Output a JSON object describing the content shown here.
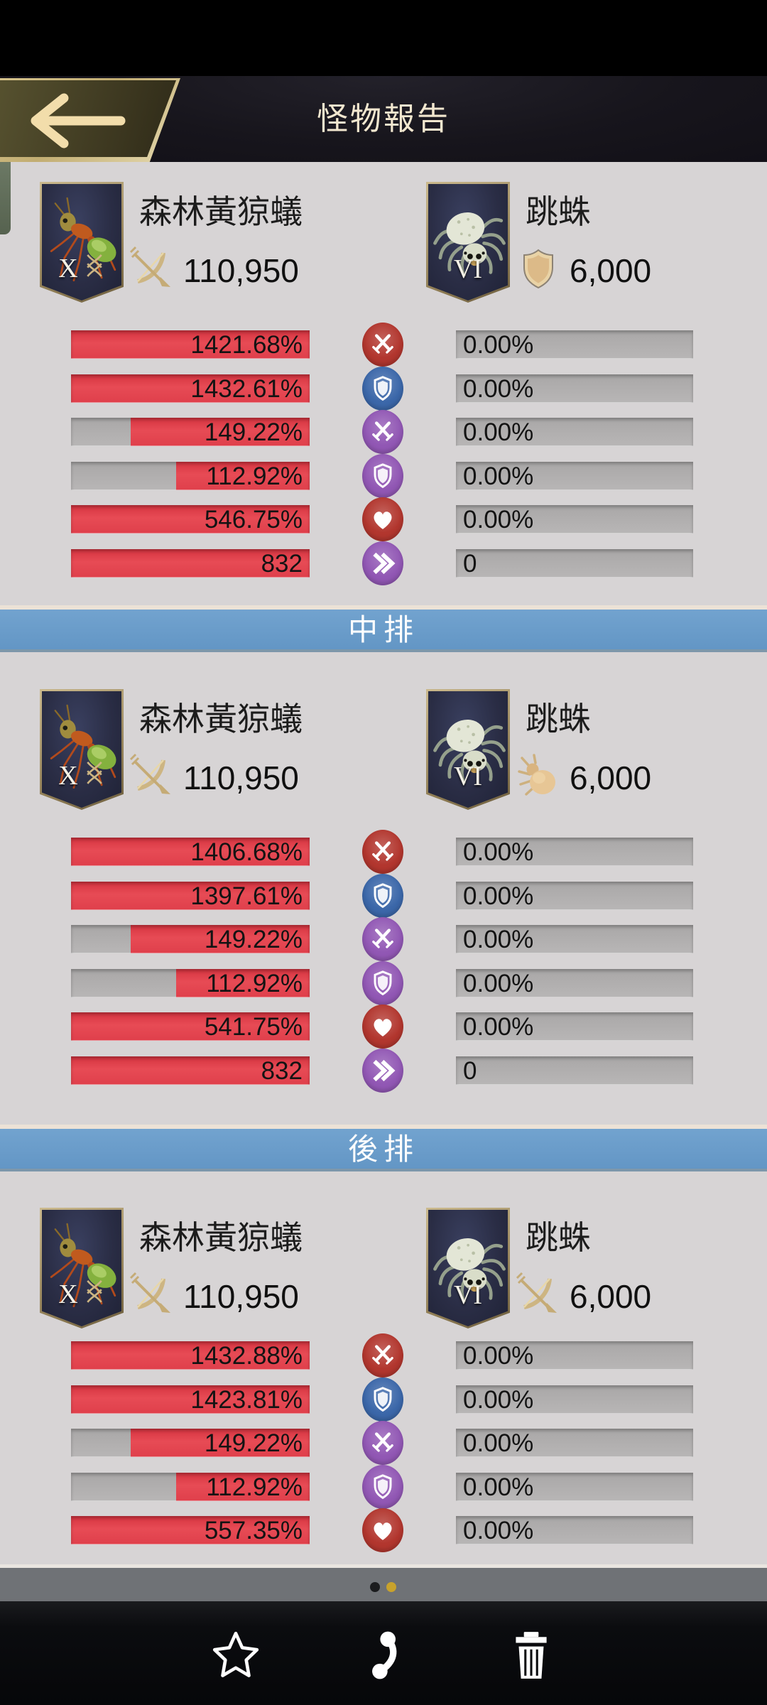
{
  "header": {
    "title": "怪物報告"
  },
  "colors": {
    "bar_red": "#e2414d",
    "bar_gray": "#b3b1b1",
    "circle_red": "#b2362e",
    "circle_blue": "#3b67a9",
    "circle_purple": "#9157b4",
    "banner_blue": "#6a9dc9",
    "content_bg": "#d7d4d5",
    "pager_gold": "#c8a22c"
  },
  "sections": [
    {
      "banner_label": null,
      "attacker": {
        "name": "森林黃猄蟻",
        "tier": "X",
        "has_dna": true,
        "creature": "ant",
        "stat_icon": "bow-icon",
        "power": "110,950"
      },
      "defender": {
        "name": "跳蛛",
        "tier": "VI",
        "has_dna": false,
        "creature": "spider",
        "stat_icon": "shield-icon",
        "power": "6,000"
      },
      "rows": [
        {
          "stat": "attack-icon",
          "circle": "#b2362e",
          "glyph": "swords",
          "left_value": "1421.68%",
          "left_fill": 100,
          "right_value": "0.00%",
          "right_fill": 0
        },
        {
          "stat": "defense-icon",
          "circle": "#3b67a9",
          "glyph": "shield",
          "left_value": "1432.61%",
          "left_fill": 100,
          "right_value": "0.00%",
          "right_fill": 0
        },
        {
          "stat": "special-attack-icon",
          "circle": "#9157b4",
          "glyph": "swords",
          "left_value": "149.22%",
          "left_fill": 75,
          "right_value": "0.00%",
          "right_fill": 0
        },
        {
          "stat": "special-defense-icon",
          "circle": "#9157b4",
          "glyph": "shield",
          "left_value": "112.92%",
          "left_fill": 56,
          "right_value": "0.00%",
          "right_fill": 0
        },
        {
          "stat": "health-icon",
          "circle": "#b2362e",
          "glyph": "heart",
          "left_value": "546.75%",
          "left_fill": 100,
          "right_value": "0.00%",
          "right_fill": 0
        },
        {
          "stat": "speed-icon",
          "circle": "#9157b4",
          "glyph": "chevrons",
          "left_value": "832",
          "left_fill": 100,
          "right_value": "0",
          "right_fill": 0
        }
      ]
    },
    {
      "banner_label": "中排",
      "attacker": {
        "name": "森林黃猄蟻",
        "tier": "X",
        "has_dna": true,
        "creature": "ant",
        "stat_icon": "bow-icon",
        "power": "110,950"
      },
      "defender": {
        "name": "跳蛛",
        "tier": "VI",
        "has_dna": false,
        "creature": "spider",
        "stat_icon": "insect-icon",
        "power": "6,000"
      },
      "rows": [
        {
          "stat": "attack-icon",
          "circle": "#b2362e",
          "glyph": "swords",
          "left_value": "1406.68%",
          "left_fill": 100,
          "right_value": "0.00%",
          "right_fill": 0
        },
        {
          "stat": "defense-icon",
          "circle": "#3b67a9",
          "glyph": "shield",
          "left_value": "1397.61%",
          "left_fill": 100,
          "right_value": "0.00%",
          "right_fill": 0
        },
        {
          "stat": "special-attack-icon",
          "circle": "#9157b4",
          "glyph": "swords",
          "left_value": "149.22%",
          "left_fill": 75,
          "right_value": "0.00%",
          "right_fill": 0
        },
        {
          "stat": "special-defense-icon",
          "circle": "#9157b4",
          "glyph": "shield",
          "left_value": "112.92%",
          "left_fill": 56,
          "right_value": "0.00%",
          "right_fill": 0
        },
        {
          "stat": "health-icon",
          "circle": "#b2362e",
          "glyph": "heart",
          "left_value": "541.75%",
          "left_fill": 100,
          "right_value": "0.00%",
          "right_fill": 0
        },
        {
          "stat": "speed-icon",
          "circle": "#9157b4",
          "glyph": "chevrons",
          "left_value": "832",
          "left_fill": 100,
          "right_value": "0",
          "right_fill": 0
        }
      ]
    },
    {
      "banner_label": "後排",
      "attacker": {
        "name": "森林黃猄蟻",
        "tier": "X",
        "has_dna": true,
        "creature": "ant",
        "stat_icon": "bow-icon",
        "power": "110,950"
      },
      "defender": {
        "name": "跳蛛",
        "tier": "VI",
        "has_dna": false,
        "creature": "spider",
        "stat_icon": "bow-icon",
        "power": "6,000"
      },
      "rows": [
        {
          "stat": "attack-icon",
          "circle": "#b2362e",
          "glyph": "swords",
          "left_value": "1432.88%",
          "left_fill": 100,
          "right_value": "0.00%",
          "right_fill": 0
        },
        {
          "stat": "defense-icon",
          "circle": "#3b67a9",
          "glyph": "shield",
          "left_value": "1423.81%",
          "left_fill": 100,
          "right_value": "0.00%",
          "right_fill": 0
        },
        {
          "stat": "special-attack-icon",
          "circle": "#9157b4",
          "glyph": "swords",
          "left_value": "149.22%",
          "left_fill": 75,
          "right_value": "0.00%",
          "right_fill": 0
        },
        {
          "stat": "special-defense-icon",
          "circle": "#9157b4",
          "glyph": "shield",
          "left_value": "112.92%",
          "left_fill": 56,
          "right_value": "0.00%",
          "right_fill": 0
        },
        {
          "stat": "health-icon",
          "circle": "#b2362e",
          "glyph": "heart",
          "left_value": "557.35%",
          "left_fill": 100,
          "right_value": "0.00%",
          "right_fill": 0
        }
      ]
    }
  ],
  "pager": {
    "dots": [
      {
        "active": false
      },
      {
        "active": true
      }
    ]
  },
  "toolbar": {
    "icons": [
      "star-icon",
      "share-icon",
      "trash-icon"
    ]
  }
}
